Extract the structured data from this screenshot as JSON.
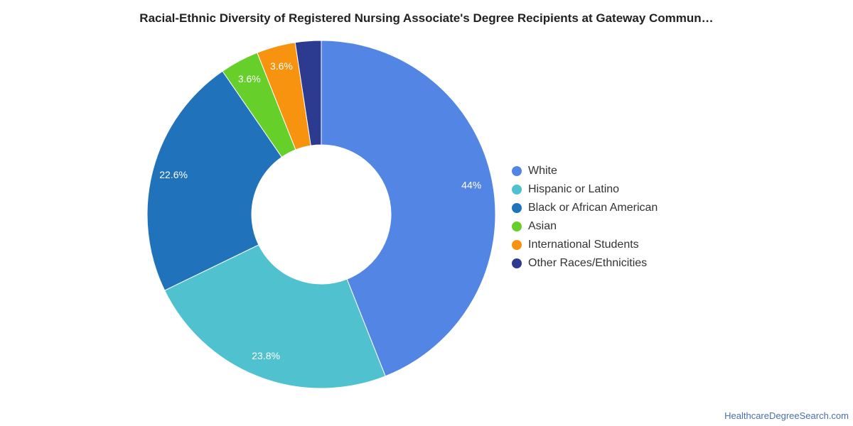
{
  "chart_data": {
    "type": "pie",
    "title": "Racial-Ethnic Diversity of Registered Nursing Associate's Degree Recipients at Gateway Commun…",
    "donut": true,
    "legend_position": "right",
    "slices": [
      {
        "label": "White",
        "value": 44.0,
        "display": "44%",
        "color": "#5386e4"
      },
      {
        "label": "Hispanic or Latino",
        "value": 23.8,
        "display": "23.8%",
        "color": "#4fc1cf"
      },
      {
        "label": "Black or African American",
        "value": 22.6,
        "display": "22.6%",
        "color": "#2073bb"
      },
      {
        "label": "Asian",
        "value": 3.6,
        "display": "3.6%",
        "color": "#66cf2a"
      },
      {
        "label": "International Students",
        "value": 3.6,
        "display": "3.6%",
        "color": "#f7930f"
      },
      {
        "label": "Other Races/Ethnicities",
        "value": 2.4,
        "display": "",
        "color": "#2c3a8f"
      }
    ]
  },
  "footer": {
    "source": "HealthcareDegreeSearch.com"
  }
}
